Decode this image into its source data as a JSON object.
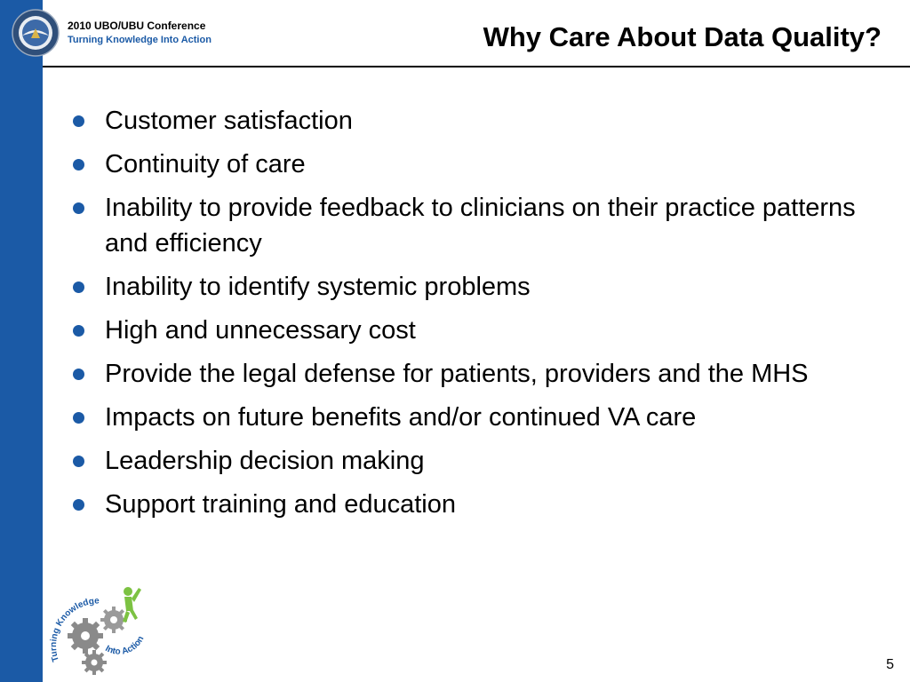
{
  "header": {
    "conference": "2010 UBO/UBU Conference",
    "tagline": "Turning Knowledge Into Action",
    "title": "Why Care About Data Quality?"
  },
  "bullets": [
    "Customer satisfaction",
    "Continuity of care",
    "Inability to provide feedback to clinicians on their practice patterns and efficiency",
    "Inability to identify systemic problems",
    "High and unnecessary cost",
    "Provide the legal defense for patients, providers and the MHS",
    "Impacts on future benefits and/or continued VA care",
    "Leadership decision making",
    "Support training and education"
  ],
  "logo": {
    "text_top": "Turning Knowledge",
    "text_bottom": "Into Action"
  },
  "footer": {
    "page_number": "5"
  },
  "colors": {
    "accent": "#1b5aa6",
    "gear": "#8a8a8a",
    "figure": "#7cc242"
  }
}
